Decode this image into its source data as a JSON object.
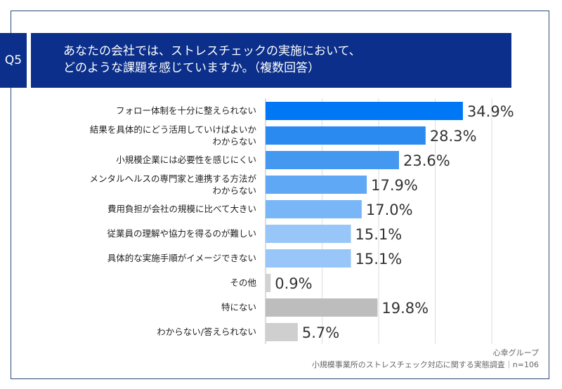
{
  "question": {
    "number": "Q5",
    "text": "あなたの会社では、ストレスチェックの実施において、\nどのような課題を感じていますか。（複数回答）"
  },
  "chart_data": {
    "type": "bar",
    "orientation": "horizontal",
    "categories": [
      [
        "フォロー体制を十分に整えられない"
      ],
      [
        "結果を具体的にどう活用していけばよいか",
        "わからない"
      ],
      [
        "小規模企業には必要性を感じにくい"
      ],
      [
        "メンタルヘルスの専門家と連携する方法が",
        "わからない"
      ],
      [
        "費用負担が会社の規模に比べて大きい"
      ],
      [
        "従業員の理解や協力を得るのが難しい"
      ],
      [
        "具体的な実施手順がイメージできない"
      ],
      [
        "その他"
      ],
      [
        "特にない"
      ],
      [
        "わからない/答えられない"
      ]
    ],
    "values": [
      34.9,
      28.3,
      23.6,
      17.9,
      17.0,
      15.1,
      15.1,
      0.9,
      19.8,
      5.7
    ],
    "value_labels": [
      "34.9%",
      "28.3%",
      "23.6%",
      "17.9%",
      "17.0%",
      "15.1%",
      "15.1%",
      "0.9%",
      "19.8%",
      "5.7%"
    ],
    "colors": [
      "#0077f5",
      "#2a8af0",
      "#4598ef",
      "#5ea8f5",
      "#78b6f7",
      "#98c6f8",
      "#98c6f8",
      "#d2d2d2",
      "#bdbdbd",
      "#cfcfcf"
    ],
    "xlim": [
      0,
      50
    ],
    "grid": true,
    "unit": "%"
  },
  "footer": {
    "source": "心幸グループ",
    "survey": "小規模事業所のストレスチェック対応に関する実態調査｜n=106"
  }
}
